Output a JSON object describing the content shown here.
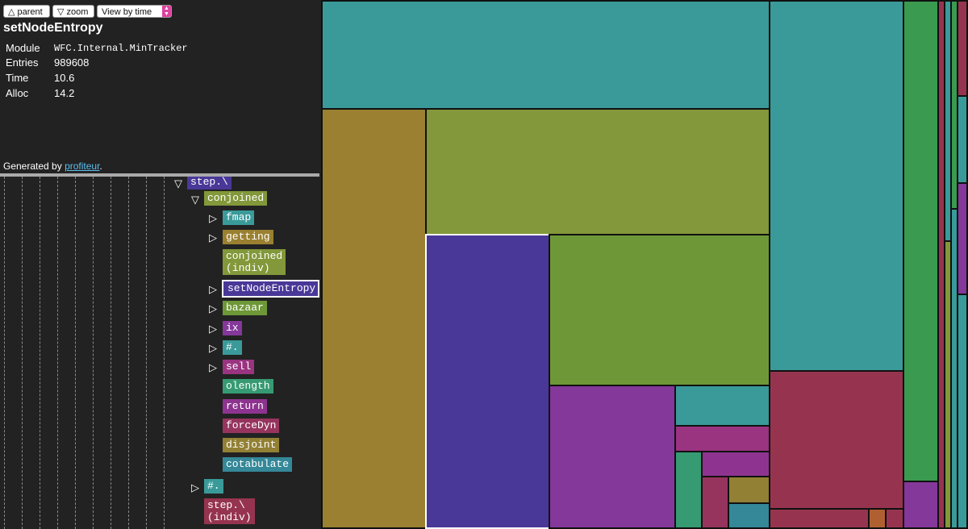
{
  "toolbar": {
    "parent_label": "△ parent",
    "zoom_label": "▽ zoom",
    "view_select_value": "View by time"
  },
  "info": {
    "title": "setNodeEntropy",
    "fields": [
      {
        "label": "Module",
        "value": "WFC.Internal.MinTracker"
      },
      {
        "label": "Entries",
        "value": "989608"
      },
      {
        "label": "Time",
        "value": "10.6"
      },
      {
        "label": "Alloc",
        "value": "14.2"
      }
    ],
    "generated_prefix": "Generated by ",
    "generated_link": "profiteur",
    "generated_suffix": "."
  },
  "tree": {
    "step_label": "step.\\",
    "conjoined_label": "conjoined",
    "children": [
      {
        "label": "fmap",
        "color": "#3a9a9a"
      },
      {
        "label": "getting",
        "color": "#9a8030"
      },
      {
        "label": "conjoined\n(indiv)",
        "color": "#82983a"
      },
      {
        "label": "setNodeEntropy",
        "color": "#4a3898"
      },
      {
        "label": "bazaar",
        "color": "#6e9838"
      },
      {
        "label": "ix",
        "color": "#84389a"
      },
      {
        "label": "#.",
        "color": "#3a9a9a"
      },
      {
        "label": "sell",
        "color": "#9a3480"
      },
      {
        "label": "olength",
        "color": "#369a72"
      },
      {
        "label": "return",
        "color": "#8e3490"
      },
      {
        "label": "forceDyn",
        "color": "#96345e"
      },
      {
        "label": "disjoint",
        "color": "#928034"
      },
      {
        "label": "cotabulate",
        "color": "#348898"
      }
    ],
    "sibling_hash_label": "#.",
    "step_indiv_label": "step.\\\n(indiv)"
  },
  "colors": {
    "teal": "#3a9a9a",
    "olive": "#9a8030",
    "lime": "#82983a",
    "green": "#6e9838",
    "purple": "#4a3898",
    "magenta": "#84389a",
    "crimson": "#963450",
    "selected_border": "#ffffff"
  }
}
